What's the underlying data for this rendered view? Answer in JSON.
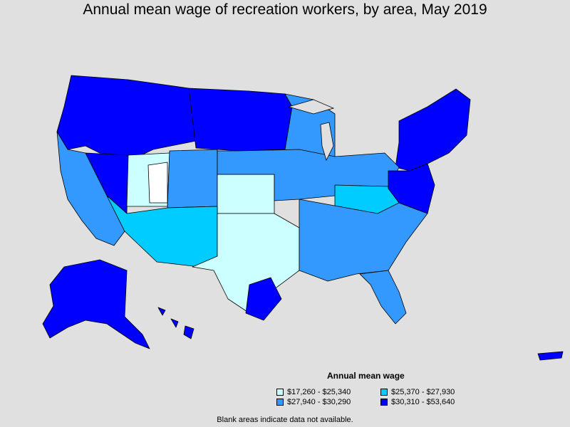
{
  "title": "Annual mean wage of recreation workers, by area, May 2019",
  "legend": {
    "title": "Annual mean wage",
    "items": [
      {
        "label": "$17,260 - $25,340",
        "color": "#ccffff"
      },
      {
        "label": "$25,370 - $27,930",
        "color": "#00ccff"
      },
      {
        "label": "$27,940 - $30,290",
        "color": "#3399ff"
      },
      {
        "label": "$30,310 - $53,640",
        "color": "#0000ff"
      }
    ]
  },
  "footnote": "Blank areas indicate data not available.",
  "colors": {
    "background": "#e0e0e0",
    "border": "#000000",
    "no_data": "#ffffff"
  },
  "regions": [
    {
      "id": "northwest",
      "bin": 3
    },
    {
      "id": "northern-plains",
      "bin": 3
    },
    {
      "id": "great-lakes-west",
      "bin": 2
    },
    {
      "id": "northeast",
      "bin": 3
    },
    {
      "id": "california",
      "bin": 2
    },
    {
      "id": "nevada",
      "bin": 3
    },
    {
      "id": "utah",
      "bin": 0
    },
    {
      "id": "utah-blank",
      "bin": -1
    },
    {
      "id": "colorado",
      "bin": 2
    },
    {
      "id": "central-plains",
      "bin": 0
    },
    {
      "id": "midwest",
      "bin": 2
    },
    {
      "id": "ohio-valley",
      "bin": 1
    },
    {
      "id": "southwest",
      "bin": 1
    },
    {
      "id": "texas",
      "bin": 0
    },
    {
      "id": "gulf-coast",
      "bin": 3
    },
    {
      "id": "southeast",
      "bin": 2
    },
    {
      "id": "florida",
      "bin": 2
    },
    {
      "id": "mid-atlantic",
      "bin": 3
    },
    {
      "id": "alaska",
      "bin": 3
    },
    {
      "id": "hawaii",
      "bin": 3
    },
    {
      "id": "puerto-rico",
      "bin": 3
    }
  ]
}
